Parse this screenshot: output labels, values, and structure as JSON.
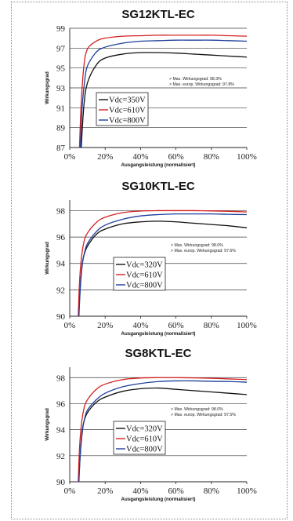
{
  "chart_data": [
    {
      "type": "line",
      "title": "SG12KTL-EC",
      "xlabel": "Ausgangsleistung (normalisiert)",
      "ylabel": "Wirkungsgrad",
      "xlim": [
        0,
        100
      ],
      "ylim": [
        87,
        99
      ],
      "x_ticks": [
        "0%",
        "20%",
        "40%",
        "60%",
        "80%",
        "100%"
      ],
      "y_ticks": [
        "87",
        "89",
        "91",
        "93",
        "95",
        "97",
        "99"
      ],
      "grid": "horizontal",
      "notes": [
        "> Max. Wirkungsgrad: 98.3%",
        "> Max. europ. Wirkungsgrad: 97.8%"
      ],
      "legend_position": "lower-center",
      "series": [
        {
          "name": "Vdc=350V",
          "color": "#111111",
          "x": [
            6.5,
            8,
            10,
            15,
            20,
            30,
            40,
            50,
            60,
            70,
            80,
            90,
            100
          ],
          "y": [
            87,
            91.2,
            93.5,
            95.3,
            96.0,
            96.4,
            96.55,
            96.55,
            96.5,
            96.4,
            96.3,
            96.2,
            96.1
          ]
        },
        {
          "name": "Vdc=610V",
          "color": "#d42020",
          "x": [
            5.5,
            6.5,
            8,
            10,
            15,
            20,
            30,
            40,
            50,
            60,
            70,
            80,
            90,
            100
          ],
          "y": [
            87,
            91.5,
            95.2,
            96.9,
            97.7,
            98.0,
            98.2,
            98.25,
            98.3,
            98.3,
            98.3,
            98.3,
            98.25,
            98.2
          ]
        },
        {
          "name": "Vdc=800V",
          "color": "#1e3f9a",
          "x": [
            6,
            7,
            8.5,
            10,
            15,
            20,
            30,
            40,
            50,
            60,
            70,
            80,
            90,
            100
          ],
          "y": [
            87,
            91,
            93.8,
            95.2,
            96.6,
            97.1,
            97.5,
            97.7,
            97.75,
            97.8,
            97.8,
            97.8,
            97.75,
            97.7
          ]
        }
      ]
    },
    {
      "type": "line",
      "title": "SG10KTL-EC",
      "xlabel": "Ausgangsleistung (normalisiert)",
      "ylabel": "Wirkungsgrad",
      "xlim": [
        0,
        100
      ],
      "ylim": [
        90,
        98.8
      ],
      "x_ticks": [
        "0%",
        "20%",
        "40%",
        "60%",
        "80%",
        "100%"
      ],
      "y_ticks": [
        "90",
        "92",
        "94",
        "96",
        "98"
      ],
      "grid": "horizontal",
      "notes": [
        "> Max. Wirkungsgrad: 98.0%",
        "> Max. europ. Wirkungsgrad: 97.6%"
      ],
      "legend_position": "lower-center",
      "series": [
        {
          "name": "Vdc=320V",
          "color": "#111111",
          "x": [
            5,
            6,
            7,
            8,
            10,
            15,
            20,
            30,
            40,
            50,
            60,
            70,
            80,
            90,
            100
          ],
          "y": [
            90,
            92.3,
            93.8,
            94.6,
            95.3,
            96.2,
            96.6,
            97.0,
            97.15,
            97.2,
            97.15,
            97.05,
            96.95,
            96.85,
            96.7
          ]
        },
        {
          "name": "Vdc=610V",
          "color": "#d42020",
          "x": [
            4.8,
            5.5,
            6.5,
            8,
            10,
            15,
            20,
            30,
            40,
            50,
            60,
            70,
            80,
            90,
            100
          ],
          "y": [
            90,
            92.5,
            94.3,
            95.6,
            96.3,
            97.1,
            97.5,
            97.85,
            97.97,
            98.0,
            98.0,
            98.0,
            97.98,
            97.95,
            97.9
          ]
        },
        {
          "name": "Vdc=800V",
          "color": "#1e3f9a",
          "x": [
            5.2,
            6,
            7,
            8.5,
            10,
            15,
            20,
            30,
            40,
            50,
            60,
            70,
            80,
            90,
            100
          ],
          "y": [
            90,
            92.2,
            93.9,
            94.9,
            95.5,
            96.4,
            96.9,
            97.35,
            97.6,
            97.7,
            97.75,
            97.75,
            97.75,
            97.72,
            97.7
          ]
        }
      ]
    },
    {
      "type": "line",
      "title": "SG8KTL-EC",
      "xlabel": "Ausgangsleistung (normalisiert)",
      "ylabel": "Wirkungsgrad",
      "xlim": [
        0,
        100
      ],
      "ylim": [
        90,
        98.8
      ],
      "x_ticks": [
        "0%",
        "20%",
        "40%",
        "60%",
        "80%",
        "100%"
      ],
      "y_ticks": [
        "90",
        "92",
        "94",
        "96",
        "98"
      ],
      "grid": "horizontal",
      "notes": [
        "> Max. Wirkungsgrad: 98.0%",
        "> Max. europ. Wirkungsgrad: 97.5%"
      ],
      "legend_position": "lower-center",
      "series": [
        {
          "name": "Vdc=320V",
          "color": "#111111",
          "x": [
            5,
            6,
            7,
            8,
            10,
            15,
            20,
            30,
            40,
            50,
            60,
            70,
            80,
            90,
            100
          ],
          "y": [
            90,
            92.2,
            93.7,
            94.6,
            95.3,
            96.1,
            96.5,
            96.95,
            97.15,
            97.2,
            97.1,
            97.0,
            96.9,
            96.8,
            96.7
          ]
        },
        {
          "name": "Vdc=610V",
          "color": "#d42020",
          "x": [
            4.8,
            5.5,
            6.5,
            8,
            10,
            15,
            20,
            30,
            40,
            50,
            60,
            70,
            80,
            90,
            100
          ],
          "y": [
            90,
            92.5,
            94.3,
            95.6,
            96.3,
            97.1,
            97.5,
            97.85,
            97.97,
            98.0,
            98.0,
            97.98,
            97.95,
            97.9,
            97.85
          ]
        },
        {
          "name": "Vdc=800V",
          "color": "#1e3f9a",
          "x": [
            5.2,
            6,
            7,
            8.5,
            10,
            15,
            20,
            30,
            40,
            50,
            60,
            70,
            80,
            90,
            100
          ],
          "y": [
            90,
            92.2,
            93.9,
            94.9,
            95.5,
            96.3,
            96.8,
            97.3,
            97.55,
            97.7,
            97.75,
            97.75,
            97.72,
            97.7,
            97.65
          ]
        }
      ]
    }
  ]
}
